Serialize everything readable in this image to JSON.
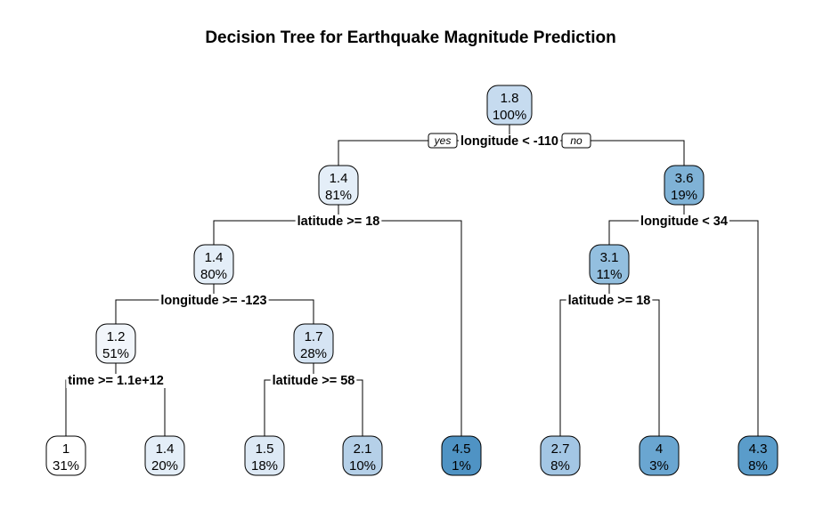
{
  "title": "Decision Tree for Earthquake Magnitude Prediction",
  "branch_labels": {
    "yes": "yes",
    "no": "no"
  },
  "colors": {
    "node_fill_scale": [
      "#ffffff",
      "#4f93c4"
    ],
    "line": "#000000",
    "text": "#000000"
  },
  "nodes": [
    {
      "id": "n1",
      "value": "1.8",
      "percent": "100%",
      "fill": "#c6dbef"
    },
    {
      "id": "n2",
      "value": "1.4",
      "percent": "81%",
      "fill": "#e4eef8"
    },
    {
      "id": "n3",
      "value": "3.6",
      "percent": "19%",
      "fill": "#7fb2d6"
    },
    {
      "id": "n4",
      "value": "1.4",
      "percent": "80%",
      "fill": "#e4eef8"
    },
    {
      "id": "n5",
      "value": "3.1",
      "percent": "11%",
      "fill": "#93bfdf"
    },
    {
      "id": "n6",
      "value": "1.2",
      "percent": "51%",
      "fill": "#f2f6fb"
    },
    {
      "id": "n7",
      "value": "1.7",
      "percent": "28%",
      "fill": "#d5e4f3"
    },
    {
      "id": "n8",
      "value": "1",
      "percent": "31%",
      "fill": "#ffffff"
    },
    {
      "id": "n9",
      "value": "1.4",
      "percent": "20%",
      "fill": "#e4eef8"
    },
    {
      "id": "n10",
      "value": "1.5",
      "percent": "18%",
      "fill": "#dde9f5"
    },
    {
      "id": "n11",
      "value": "2.1",
      "percent": "10%",
      "fill": "#b5d0e8"
    },
    {
      "id": "n12",
      "value": "4.5",
      "percent": "1%",
      "fill": "#4f93c4"
    },
    {
      "id": "n13",
      "value": "2.7",
      "percent": "8%",
      "fill": "#a3c6e4"
    },
    {
      "id": "n14",
      "value": "4",
      "percent": "3%",
      "fill": "#6aa6d1"
    },
    {
      "id": "n15",
      "value": "4.3",
      "percent": "8%",
      "fill": "#5a9cca"
    }
  ],
  "splits": [
    {
      "node": "n1",
      "label": "longitude < -110",
      "left": "n2",
      "right": "n3"
    },
    {
      "node": "n2",
      "label": "latitude >= 18",
      "left": "n4",
      "right": "n12"
    },
    {
      "node": "n3",
      "label": "longitude < 34",
      "left": "n5",
      "right": "n15"
    },
    {
      "node": "n4",
      "label": "longitude >= -123",
      "left": "n6",
      "right": "n7"
    },
    {
      "node": "n5",
      "label": "latitude >= 18",
      "left": "n13",
      "right": "n14"
    },
    {
      "node": "n6",
      "label": "time >= 1.1e+12",
      "left": "n8",
      "right": "n9"
    },
    {
      "node": "n7",
      "label": "latitude >= 58",
      "left": "n10",
      "right": "n11"
    }
  ]
}
